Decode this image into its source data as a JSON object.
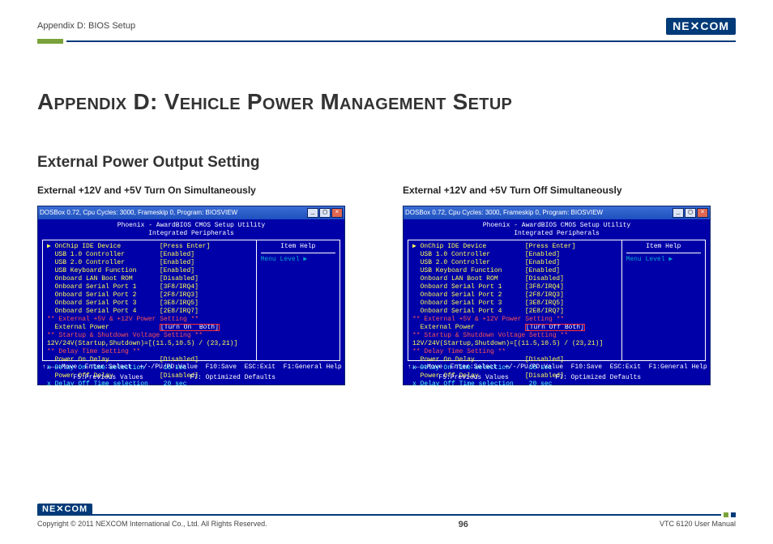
{
  "header": {
    "breadcrumb": "Appendix D: BIOS Setup",
    "logo_text": "NE COM",
    "logo_accent": "X"
  },
  "title": "Appendix D: Vehicle Power Management Setup",
  "section": "External Power Output Setting",
  "left": {
    "subtitle": "External +12V and +5V Turn On Simultaneously",
    "window_caption": "DOSBox 0.72, Cpu Cycles:   3000, Frameskip  0, Program: BIOSVIEW",
    "bios_title1": "Phoenix - AwardBIOS CMOS Setup Utility",
    "bios_title2": "Integrated Peripherals",
    "items": [
      {
        "label": "▶ OnChip IDE Device",
        "value": "[Press Enter]"
      },
      {
        "label": "  USB 1.0 Controller",
        "value": "[Enabled]"
      },
      {
        "label": "  USB 2.0 Controller",
        "value": "[Enabled]"
      },
      {
        "label": "  USB Keyboard Function",
        "value": "[Enabled]"
      },
      {
        "label": "  Onboard LAN Boot ROM",
        "value": "[Disabled]"
      },
      {
        "label": "  Onboard Serial Port 1",
        "value": "[3F8/IRQ4]"
      },
      {
        "label": "  Onboard Serial Port 2",
        "value": "[2F8/IRQ3]"
      },
      {
        "label": "  Onboard Serial Port 3",
        "value": "[3E8/IRQ5]"
      },
      {
        "label": "  Onboard Serial Port 4",
        "value": "[2E8/IRQ7]"
      }
    ],
    "ext_header": "** External +5V & +12V Power Setting **",
    "ext_label": "  External Power",
    "ext_value": "[Turn On  Both]",
    "start_header": "** Startup & Shutdown Voltage Setting **",
    "start_row": "  12V/24V(Startup,Shutdown)=[(11.5,10.5) / (23,21)]",
    "delay_header": "** Delay Time Setting **",
    "delay_rows": [
      {
        "label": "  Power On Delay",
        "value": "[Disabled]",
        "class": "yellow"
      },
      {
        "label": "x Delay On Time selection",
        "value": " 10 sec",
        "class": "cyan"
      },
      {
        "label": "  Power Off Delay",
        "value": "[Disabled]",
        "class": "yellow"
      },
      {
        "label": "x Delay Off Time selection",
        "value": " 20 sec",
        "class": "cyan"
      }
    ],
    "side_title": "Item Help",
    "side_row": "Menu Level   ▶",
    "footer1": "↑↓←→:Move  Enter:Select  +/-/PU/PD:Value  F10:Save  ESC:Exit  F1:General Help",
    "footer2": "        F5:Previous Values            F7: Optimized Defaults"
  },
  "right": {
    "subtitle": "External +12V and +5V Turn Off Simultaneously",
    "window_caption": "DOSBox 0.72, Cpu Cycles:   3000, Frameskip  0, Program: BIOSVIEW",
    "bios_title1": "Phoenix - AwardBIOS CMOS Setup Utility",
    "bios_title2": "Integrated Peripherals",
    "items": [
      {
        "label": "▶ OnChip IDE Device",
        "value": "[Press Enter]"
      },
      {
        "label": "  USB 1.0 Controller",
        "value": "[Enabled]"
      },
      {
        "label": "  USB 2.0 Controller",
        "value": "[Enabled]"
      },
      {
        "label": "  USB Keyboard Function",
        "value": "[Enabled]"
      },
      {
        "label": "  Onboard LAN Boot ROM",
        "value": "[Disabled]"
      },
      {
        "label": "  Onboard Serial Port 1",
        "value": "[3F8/IRQ4]"
      },
      {
        "label": "  Onboard Serial Port 2",
        "value": "[2F8/IRQ3]"
      },
      {
        "label": "  Onboard Serial Port 3",
        "value": "[3E8/IRQ5]"
      },
      {
        "label": "  Onboard Serial Port 4",
        "value": "[2E8/IRQ7]"
      }
    ],
    "ext_header": "** External +5V & +12V Power Setting **",
    "ext_label": "  External Power",
    "ext_value": "[Turn Off Both]",
    "start_header": "** Startup & Shutdown Voltage Setting **",
    "start_row": "  12V/24V(Startup,Shutdown)=[(11.5,10.5) / (23,21)]",
    "delay_header": "** Delay Time Setting **",
    "delay_rows": [
      {
        "label": "  Power On Delay",
        "value": "[Disabled]",
        "class": "yellow"
      },
      {
        "label": "x Delay On Time selection",
        "value": " 10 sec",
        "class": "cyan"
      },
      {
        "label": "  Power Off Delay",
        "value": "[Disabled]",
        "class": "yellow"
      },
      {
        "label": "x Delay Off Time selection",
        "value": " 20 sec",
        "class": "cyan"
      }
    ],
    "side_title": "Item Help",
    "side_row": "Menu Level   ▶",
    "footer1": "↑↓←→:Move  Enter:Select  +/-/PU/PD:Value  F10:Save  ESC:Exit  F1:General Help",
    "footer2": "        F5:Previous Values            F7: Optimized Defaults"
  },
  "footer": {
    "copyright": "Copyright © 2011 NEXCOM International Co., Ltd. All Rights Reserved.",
    "page": "96",
    "manual": "VTC 6120 User Manual"
  },
  "colors": {
    "bios_bg": "#0000a8",
    "brand_blue": "#003a78",
    "brand_green": "#7aa23a",
    "yellow": "#ffff55",
    "cyan": "#55ffff",
    "red_box": "#ff3030"
  }
}
